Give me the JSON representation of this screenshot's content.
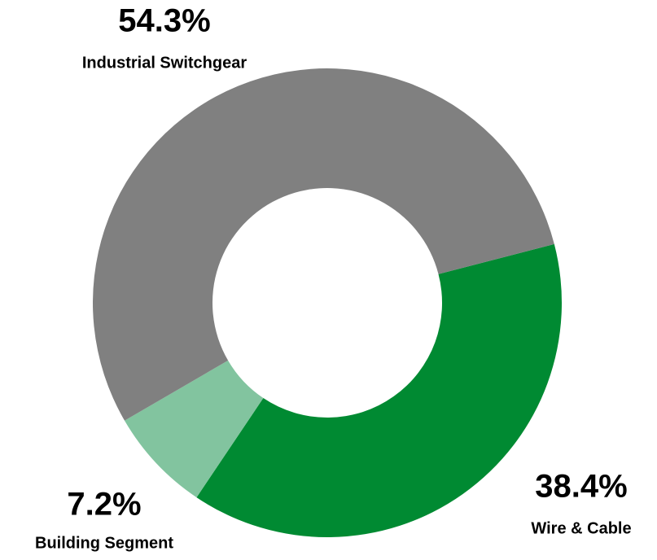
{
  "chart_data": {
    "type": "donut",
    "categories": [
      "Wire & Cable",
      "Building Segment",
      "Industrial Switchgear"
    ],
    "values": [
      38.4,
      7.2,
      54.3
    ],
    "value_labels": [
      "38.4%",
      "7.2%",
      "54.3%"
    ],
    "colors": [
      "#008a32",
      "#82c49f",
      "#808080"
    ]
  }
}
